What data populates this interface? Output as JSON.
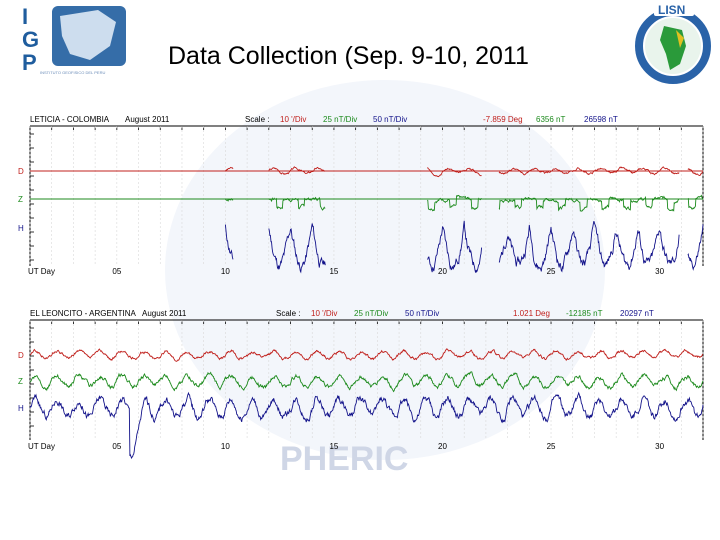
{
  "slide": {
    "title": "Data Collection (Sep. 9-10, 2011",
    "logo_left": {
      "letters": [
        "I",
        "G",
        "P"
      ],
      "subtitle": "INSTITUTO GEOFISICO DEL PERU"
    },
    "logo_right": {
      "name": "LISN",
      "ring_text": "Low-latitude Ionospheric Sensor Network"
    },
    "watermark_text": "PHERIC"
  },
  "colors": {
    "red_trace": "#c0201c",
    "green_trace": "#1c8a1c",
    "blue_trace": "#13138a",
    "axis": "#000000",
    "gridline": "#cfcfcf"
  },
  "chart_data": [
    {
      "type": "line",
      "station": "LETICIA - COLOMBIA",
      "period": "August  2011",
      "scale_label": "Scale :",
      "scales": [
        "10 '/Div",
        "25 nT/Div",
        "50 nT/Div"
      ],
      "baselines": [
        "-7.859 Deg",
        "6356 nT",
        "26598 nT"
      ],
      "channel_labels": [
        "D",
        "Z",
        "H"
      ],
      "xlabel": "UT Day",
      "x_ticks": [
        "05",
        "10",
        "15",
        "20",
        "25",
        "30"
      ],
      "xlim": [
        1,
        32
      ],
      "ylim": [
        -1,
        1
      ],
      "series": [
        {
          "name": "D",
          "color": "red",
          "base": 0.55,
          "amp": 0.05,
          "seed": 3,
          "segments": [
            [
              10.0,
              10.35
            ],
            [
              12.0,
              14.6
            ],
            [
              19.3,
              21.8
            ],
            [
              22.6,
              30.9
            ],
            [
              31.3,
              32.0
            ]
          ]
        },
        {
          "name": "Z",
          "color": "green",
          "base": 0.2,
          "amp": 0.1,
          "seed": 7,
          "segments": [
            [
              10.0,
              10.35
            ],
            [
              12.0,
              14.6
            ],
            [
              19.3,
              21.8
            ],
            [
              22.6,
              30.9
            ],
            [
              31.3,
              32.0
            ]
          ]
        },
        {
          "name": "H",
          "color": "blue",
          "base": -0.08,
          "amp": 0.45,
          "seed": 11,
          "segments": [
            [
              10.0,
              10.35
            ],
            [
              12.0,
              14.6
            ],
            [
              19.3,
              21.8
            ],
            [
              22.6,
              30.9
            ],
            [
              31.3,
              32.0
            ]
          ]
        }
      ]
    },
    {
      "type": "line",
      "station": "EL LEONCITO - ARGENTINA",
      "period": "August  2011",
      "scale_label": "Scale :",
      "scales": [
        "10 '/Div",
        "25 nT/Div",
        "50 nT/Div"
      ],
      "baselines": [
        "1.021 Deg",
        "-12185 nT",
        "20297 nT"
      ],
      "channel_labels": [
        "D",
        "Z",
        "H"
      ],
      "xlabel": "UT Day",
      "x_ticks": [
        "05",
        "10",
        "15",
        "20",
        "25",
        "30"
      ],
      "xlim": [
        1,
        32
      ],
      "ylim": [
        -1,
        1
      ],
      "series": [
        {
          "name": "D",
          "color": "red",
          "base": 0.55,
          "amp": 0.08,
          "seed": 5,
          "segments": [
            [
              1.0,
              32.0
            ]
          ]
        },
        {
          "name": "Z",
          "color": "green",
          "base": 0.25,
          "amp": 0.12,
          "seed": 9,
          "segments": [
            [
              1.0,
              32.0
            ]
          ]
        },
        {
          "name": "H",
          "color": "blue",
          "base": -0.05,
          "amp": 0.2,
          "seed": 13,
          "segments": [
            [
              1.0,
              32.0
            ]
          ],
          "storm_day": 5.6
        }
      ]
    }
  ]
}
